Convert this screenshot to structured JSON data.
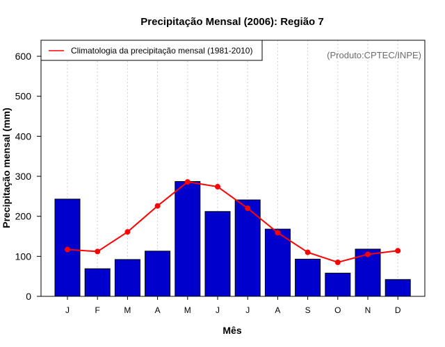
{
  "chart_data": {
    "type": "bar",
    "title": "Precipitação Mensal (2006): Região 7",
    "xlabel": "Mês",
    "ylabel": "Precipitação mensal (mm)",
    "ylim": [
      0,
      640
    ],
    "yticks": [
      0,
      100,
      200,
      300,
      400,
      500,
      600
    ],
    "categories": [
      "J",
      "F",
      "M",
      "A",
      "M",
      "J",
      "J",
      "A",
      "S",
      "O",
      "N",
      "D"
    ],
    "series": [
      {
        "name": "Precipitação mensal (2006)",
        "type": "bar",
        "color": "#0000cd",
        "values": [
          243,
          69,
          92,
          113,
          287,
          212,
          241,
          168,
          93,
          58,
          118,
          42
        ]
      },
      {
        "name": "Climatologia da precipitação mensal (1981-2010)",
        "type": "line",
        "color": "#ff0000",
        "values": [
          117,
          112,
          161,
          226,
          286,
          274,
          220,
          159,
          110,
          85,
          105,
          114
        ]
      }
    ],
    "legend": {
      "position": "top-left",
      "entries": [
        "Climatologia da precipitação mensal (1981-2010)"
      ]
    },
    "annotation": "(Produto:CPTEC/INPE)",
    "grid": "vertical dotted"
  }
}
